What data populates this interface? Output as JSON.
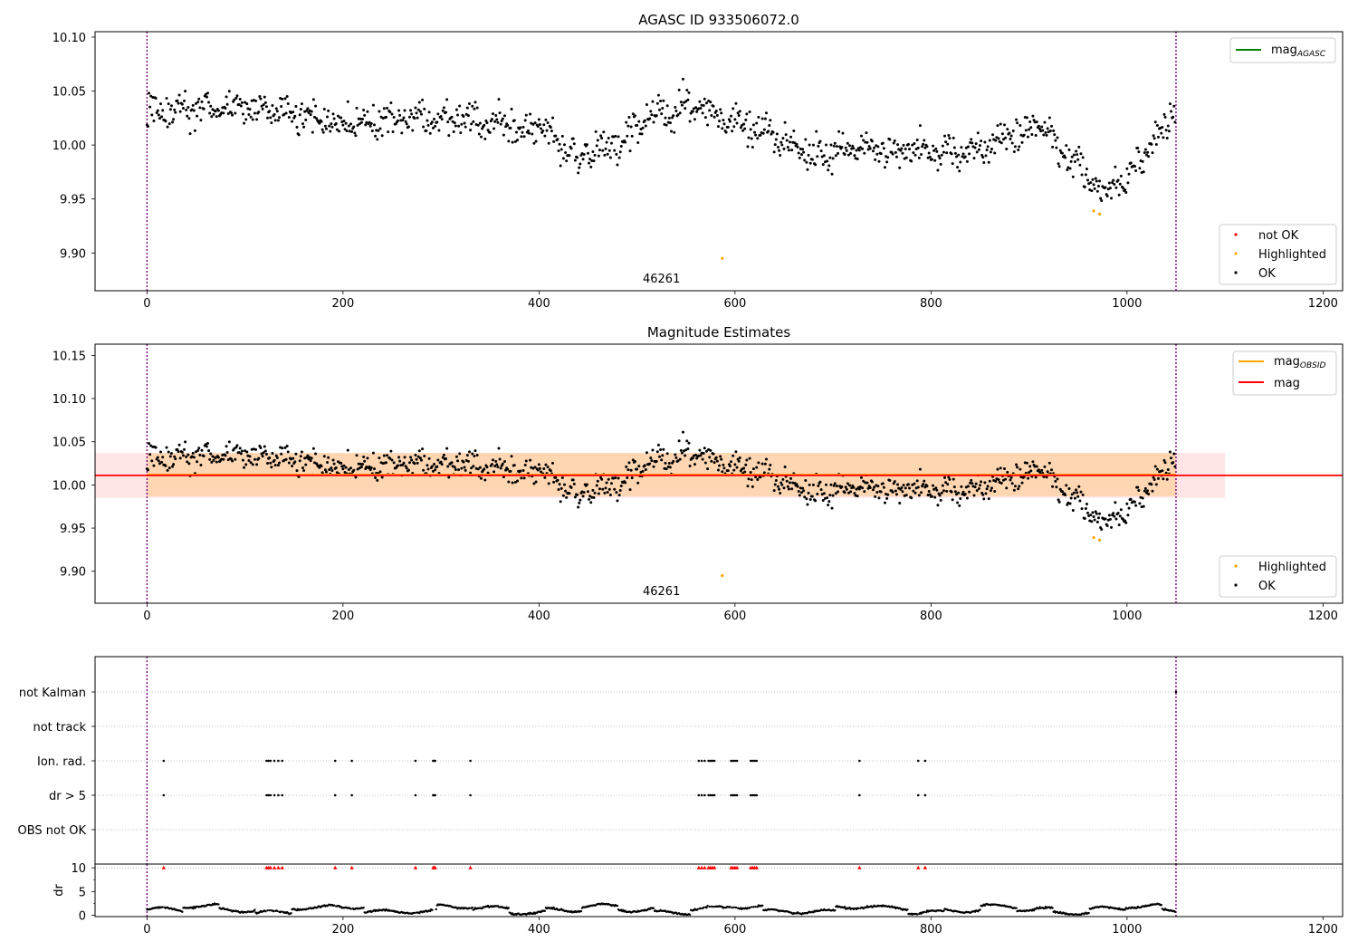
{
  "chart_data": [
    {
      "type": "scatter",
      "title": "AGASC ID 933506072.0",
      "xlim": [
        -53,
        1220
      ],
      "ylim": [
        9.865,
        10.105
      ],
      "xticks": [
        0,
        200,
        400,
        600,
        800,
        1000,
        1200
      ],
      "yticks": [
        "9.90",
        "9.95",
        "10.00",
        "10.05",
        "10.10"
      ],
      "obs_boundaries": [
        0,
        1050
      ],
      "obsid_label": "46261",
      "obsid_label_x": 525,
      "legend_top": {
        "placement": "top-right",
        "entries": [
          {
            "name": "mag_AGASC",
            "color": "#008000"
          }
        ]
      },
      "legend_bottom": {
        "placement": "bottom-right",
        "entries": [
          {
            "name": "not OK",
            "color": "#ff0000"
          },
          {
            "name": "Highlighted",
            "color": "#ffa500"
          },
          {
            "name": "OK",
            "color": "#000000"
          }
        ]
      },
      "series": [
        {
          "name": "OK",
          "color": "#000000",
          "x_range": [
            0,
            1050
          ],
          "count": 1050,
          "trend": [
            [
              0,
              10.03
            ],
            [
              100,
              10.035
            ],
            [
              200,
              10.02
            ],
            [
              300,
              10.025
            ],
            [
              400,
              10.015
            ],
            [
              440,
              9.99
            ],
            [
              480,
              10.0
            ],
            [
              520,
              10.03
            ],
            [
              560,
              10.035
            ],
            [
              600,
              10.02
            ],
            [
              640,
              10.01
            ],
            [
              680,
              9.99
            ],
            [
              720,
              10.0
            ],
            [
              780,
              9.995
            ],
            [
              830,
              9.99
            ],
            [
              880,
              10.005
            ],
            [
              910,
              10.02
            ],
            [
              940,
              9.99
            ],
            [
              975,
              9.955
            ],
            [
              1000,
              9.97
            ],
            [
              1030,
              10.005
            ],
            [
              1050,
              10.035
            ]
          ]
        },
        {
          "name": "Highlighted",
          "color": "#ffa500",
          "points": [
            [
              587,
              9.895
            ],
            [
              966,
              9.939
            ],
            [
              972,
              9.936
            ]
          ]
        }
      ]
    },
    {
      "type": "scatter",
      "title": "Magnitude Estimates",
      "xlim": [
        -53,
        1220
      ],
      "ylim": [
        9.863,
        10.163
      ],
      "xticks": [
        0,
        200,
        400,
        600,
        800,
        1000,
        1200
      ],
      "yticks": [
        "9.90",
        "9.95",
        "10.00",
        "10.05",
        "10.10",
        "10.15"
      ],
      "obs_boundaries": [
        0,
        1050
      ],
      "obsid_label": "46261",
      "obsid_label_x": 525,
      "mag_obsid": {
        "value": 10.012,
        "band": [
          9.987,
          10.037
        ],
        "x_range": [
          0,
          1050
        ],
        "color": "#ffa500"
      },
      "mag": {
        "value": 10.011,
        "band": [
          9.985,
          10.037
        ],
        "color": "#ff0000"
      },
      "legend_top": {
        "placement": "top-right",
        "entries": [
          {
            "name": "mag_OBSID",
            "color": "#ffa500"
          },
          {
            "name": "mag",
            "color": "#ff0000"
          }
        ]
      },
      "legend_bottom": {
        "placement": "bottom-right",
        "entries": [
          {
            "name": "Highlighted",
            "color": "#ffa500"
          },
          {
            "name": "OK",
            "color": "#000000"
          }
        ]
      }
    },
    {
      "type": "scatter",
      "title": "",
      "xlim": [
        -53,
        1220
      ],
      "categories": [
        "not Kalman",
        "not track",
        "Ion. rad.",
        "dr > 5",
        "OBS not OK"
      ],
      "flag_x": [
        17,
        122,
        124,
        126,
        130,
        134,
        138,
        192,
        209,
        274,
        292,
        293,
        294,
        330,
        563,
        566,
        569,
        573,
        575,
        577,
        579,
        596,
        598,
        600,
        602,
        616,
        618,
        620,
        622,
        727,
        787,
        794
      ],
      "not_kalman_x": [
        1050
      ]
    },
    {
      "type": "scatter",
      "title": "",
      "ylabel": "dr",
      "xlim": [
        -53,
        1220
      ],
      "ylim": [
        -0.3,
        10.8
      ],
      "yticks": [
        "0",
        "5",
        "10"
      ],
      "xticks": [
        0,
        200,
        400,
        600,
        800,
        1000,
        1200
      ],
      "clipped_marker": {
        "y": 10,
        "color": "#ff0000"
      }
    }
  ]
}
